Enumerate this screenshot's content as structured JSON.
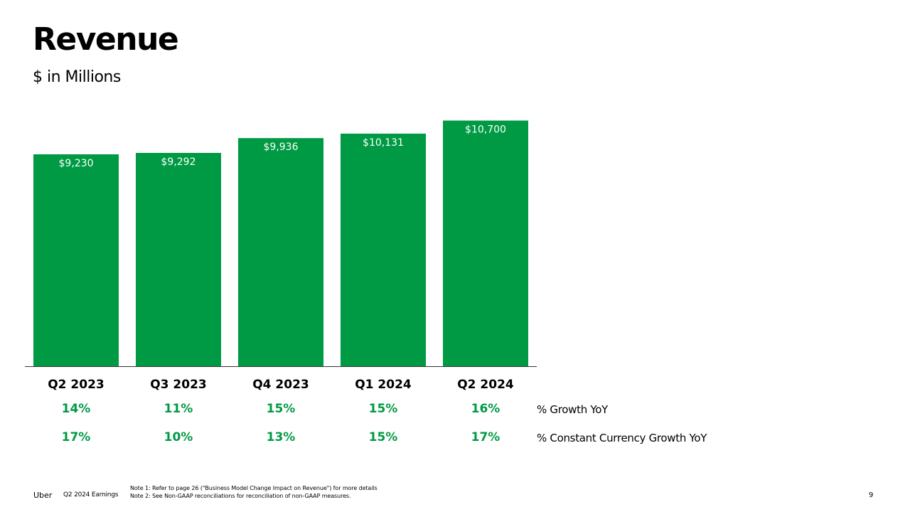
{
  "header": {
    "title": "Revenue",
    "subtitle": "$ in Millions"
  },
  "chart_data": {
    "type": "bar",
    "categories": [
      "Q2 2023",
      "Q3 2023",
      "Q4 2023",
      "Q1 2024",
      "Q2 2024"
    ],
    "values": [
      9230,
      9292,
      9936,
      10131,
      10700
    ],
    "value_labels": [
      "$9,230",
      "$9,292",
      "$9,936",
      "$10,131",
      "$10,700"
    ],
    "title": "Revenue",
    "ylabel": "",
    "xlabel": "",
    "grid": false,
    "bar_color": "#009a44"
  },
  "growth_rows": [
    {
      "label": "% Growth YoY",
      "values": [
        "14%",
        "11%",
        "15%",
        "15%",
        "16%"
      ]
    },
    {
      "label": "% Constant Currency Growth YoY",
      "values": [
        "17%",
        "10%",
        "13%",
        "15%",
        "17%"
      ]
    }
  ],
  "footer": {
    "brand": "Uber",
    "report": "Q2 2024 Earnings",
    "notes": [
      "Note 1: Refer to page 26 (\"Business Model Change Impact on Revenue\") for more details",
      "Note 2: See Non-GAAP reconciliations for reconciliation of non-GAAP measures."
    ],
    "page_number": "9"
  }
}
